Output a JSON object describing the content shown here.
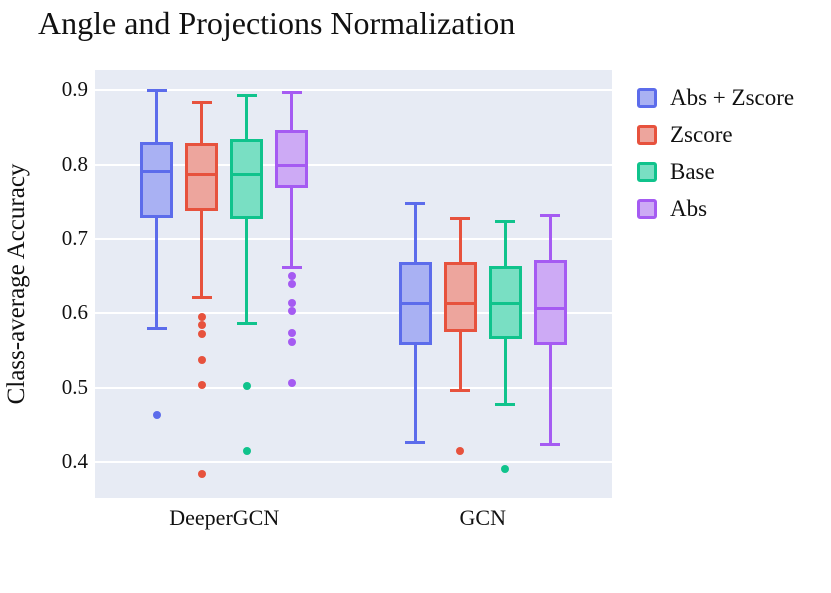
{
  "chart_data": {
    "type": "boxplot",
    "title": "Angle and Projections Normalization",
    "ylabel": "Class-average Accuracy",
    "xlabel": "",
    "categories": [
      "DeeperGCN",
      "GCN"
    ],
    "yticks": [
      0.4,
      0.5,
      0.6,
      0.7,
      0.8,
      0.9
    ],
    "ylim": [
      0.352,
      0.927
    ],
    "grid": "horizontal",
    "grid_color": "#ffffff",
    "plot_bg_color": "#e7ebf4",
    "legend_position": "upper-right-outside",
    "series": [
      {
        "name": "Abs + Zscore",
        "edge_color": "#5c6ceb",
        "fill_color": "#a9b1f3",
        "boxes": [
          {
            "category": "DeeperGCN",
            "whisker_low": 0.58,
            "q1": 0.728,
            "median": 0.79,
            "q3": 0.83,
            "whisker_high": 0.899,
            "outliers": [
              0.464
            ]
          },
          {
            "category": "GCN",
            "whisker_low": 0.426,
            "q1": 0.558,
            "median": 0.613,
            "q3": 0.669,
            "whisker_high": 0.748,
            "outliers": []
          }
        ]
      },
      {
        "name": "Zscore",
        "edge_color": "#e7523d",
        "fill_color": "#eda59d",
        "boxes": [
          {
            "category": "DeeperGCN",
            "whisker_low": 0.622,
            "q1": 0.738,
            "median": 0.786,
            "q3": 0.829,
            "whisker_high": 0.883,
            "outliers": [
              0.595,
              0.585,
              0.572,
              0.537,
              0.504,
              0.384
            ]
          },
          {
            "category": "GCN",
            "whisker_low": 0.496,
            "q1": 0.575,
            "median": 0.613,
            "q3": 0.669,
            "whisker_high": 0.728,
            "outliers": [
              0.415
            ]
          }
        ]
      },
      {
        "name": "Base",
        "edge_color": "#10c38c",
        "fill_color": "#79dfc3",
        "boxes": [
          {
            "category": "DeeperGCN",
            "whisker_low": 0.587,
            "q1": 0.727,
            "median": 0.787,
            "q3": 0.834,
            "whisker_high": 0.893,
            "outliers": [
              0.503,
              0.415
            ]
          },
          {
            "category": "GCN",
            "whisker_low": 0.477,
            "q1": 0.565,
            "median": 0.613,
            "q3": 0.664,
            "whisker_high": 0.723,
            "outliers": [
              0.391
            ]
          }
        ]
      },
      {
        "name": "Abs",
        "edge_color": "#a55bf2",
        "fill_color": "#cdaaf5",
        "boxes": [
          {
            "category": "DeeperGCN",
            "whisker_low": 0.661,
            "q1": 0.768,
            "median": 0.799,
            "q3": 0.846,
            "whisker_high": 0.897,
            "outliers": [
              0.65,
              0.639,
              0.614,
              0.603,
              0.573,
              0.561,
              0.507
            ]
          },
          {
            "category": "GCN",
            "whisker_low": 0.424,
            "q1": 0.558,
            "median": 0.607,
            "q3": 0.672,
            "whisker_high": 0.732,
            "outliers": []
          }
        ]
      }
    ]
  }
}
